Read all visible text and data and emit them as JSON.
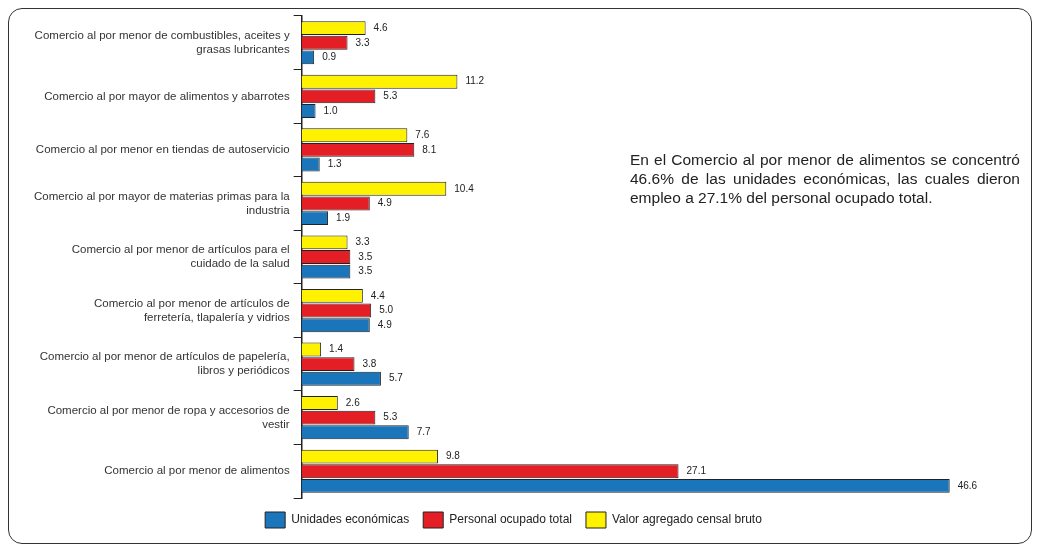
{
  "chart_data": {
    "type": "bar",
    "orientation": "horizontal",
    "categories": [
      "Comercio al por menor de combustibles, aceites y grasas lubricantes",
      "Comercio al por mayor de alimentos y abarrotes",
      "Comercio al por menor en tiendas de autoservicio",
      "Comercio al por mayor de materias primas para la industria",
      "Comercio al por menor de artículos para el cuidado de la salud",
      "Comercio al por menor de artículos de ferretería, tlapalería y vidrios",
      "Comercio al por menor de artículos de papelería, libros y periódicos",
      "Comercio al por menor de ropa y accesorios de vestir",
      "Comercio al por menor de alimentos"
    ],
    "series": [
      {
        "name": "Valor agregado censal bruto",
        "color": "#fff200",
        "values": [
          4.6,
          11.2,
          7.6,
          10.4,
          3.3,
          4.4,
          1.4,
          2.6,
          9.8
        ],
        "value_labels": [
          "4.6",
          "11.2",
          "7.6",
          "10.4",
          "3.3",
          "4.4",
          "1.4",
          "2.6",
          "9.8"
        ]
      },
      {
        "name": "Personal ocupado total",
        "color": "#e31e24",
        "values": [
          3.3,
          5.3,
          8.1,
          4.9,
          3.5,
          5.0,
          3.8,
          5.3,
          27.1
        ],
        "value_labels": [
          "3.3",
          "5.3",
          "8.1",
          "4.9",
          "3.5",
          "5.0",
          "3.8",
          "5.3",
          "27.1"
        ]
      },
      {
        "name": "Unidades económicas",
        "color": "#1a75bb",
        "values": [
          0.9,
          1.0,
          1.3,
          1.9,
          3.5,
          4.9,
          5.7,
          7.7,
          46.6
        ],
        "value_labels": [
          "0.9",
          "1.0",
          "1.3",
          "1.9",
          "3.5",
          "4.9",
          "5.7",
          "7.7",
          "46.6"
        ]
      }
    ],
    "legend": "bottom",
    "annotations": [
      "En el Comercio al por menor de alimentos se concentró 46.6% de las unidades económicas, las cuales dieron empleo a 27.1% del personal ocupado total."
    ]
  }
}
